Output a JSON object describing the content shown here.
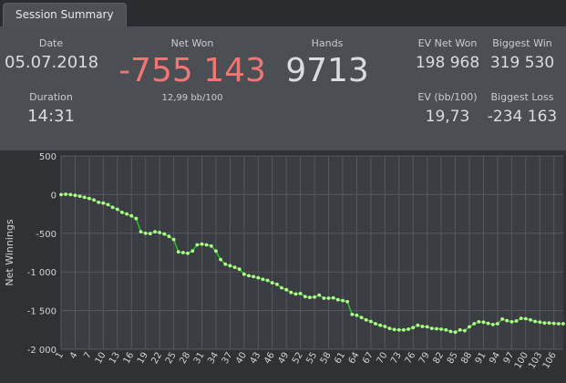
{
  "tab": {
    "label": "Session Summary"
  },
  "summary": {
    "date_label": "Date",
    "date_value": "05.07.2018",
    "duration_label": "Duration",
    "duration_value": "14:31",
    "net_won_label": "Net Won",
    "net_won_value": "-755 143",
    "net_won_sub": "12,99 bb/100",
    "hands_label": "Hands",
    "hands_value": "9713",
    "ev_net_won_label": "EV Net Won",
    "ev_net_won_value": "198 968",
    "ev_bb_label": "EV (bb/100)",
    "ev_bb_value": "19,73",
    "biggest_win_label": "Biggest Win",
    "biggest_win_value": "319 530",
    "biggest_loss_label": "Biggest Loss",
    "biggest_loss_value": "-234 163"
  },
  "colors": {
    "negative": "#f07575",
    "line": "#2fb82f",
    "marker": "#b4f58c"
  },
  "chart_data": {
    "type": "line",
    "ylabel": "Net Winnings",
    "xlabel": "",
    "ylim": [
      -2000,
      500
    ],
    "xlim": [
      1,
      108
    ],
    "y_ticks": [
      500,
      0,
      -500,
      -1000,
      -1500,
      -2000
    ],
    "y_tick_labels": [
      "500",
      "0",
      "-500",
      "-1 000",
      "-1 500",
      "-2 000"
    ],
    "x_ticks": [
      1,
      4,
      7,
      10,
      13,
      16,
      19,
      22,
      25,
      28,
      31,
      34,
      37,
      40,
      43,
      46,
      49,
      52,
      55,
      58,
      61,
      64,
      67,
      70,
      73,
      76,
      79,
      82,
      85,
      88,
      91,
      94,
      97,
      100,
      103,
      106
    ],
    "grid": true,
    "series": [
      {
        "values": [
          0,
          5,
          0,
          -10,
          -20,
          -35,
          -50,
          -70,
          -100,
          -110,
          -130,
          -165,
          -190,
          -230,
          -250,
          -275,
          -310,
          -480,
          -500,
          -505,
          -480,
          -490,
          -510,
          -540,
          -580,
          -740,
          -750,
          -760,
          -730,
          -650,
          -640,
          -650,
          -665,
          -730,
          -840,
          -900,
          -920,
          -940,
          -965,
          -1030,
          -1050,
          -1060,
          -1075,
          -1095,
          -1110,
          -1140,
          -1160,
          -1205,
          -1230,
          -1265,
          -1285,
          -1280,
          -1320,
          -1330,
          -1325,
          -1300,
          -1340,
          -1340,
          -1335,
          -1360,
          -1370,
          -1385,
          -1550,
          -1560,
          -1590,
          -1620,
          -1640,
          -1670,
          -1690,
          -1705,
          -1730,
          -1745,
          -1750,
          -1750,
          -1740,
          -1720,
          -1690,
          -1705,
          -1710,
          -1730,
          -1735,
          -1740,
          -1750,
          -1770,
          -1780,
          -1750,
          -1760,
          -1710,
          -1670,
          -1645,
          -1650,
          -1665,
          -1680,
          -1670,
          -1610,
          -1630,
          -1645,
          -1635,
          -1600,
          -1605,
          -1620,
          -1640,
          -1650,
          -1660,
          -1660,
          -1665,
          -1670,
          -1670
        ]
      }
    ]
  }
}
